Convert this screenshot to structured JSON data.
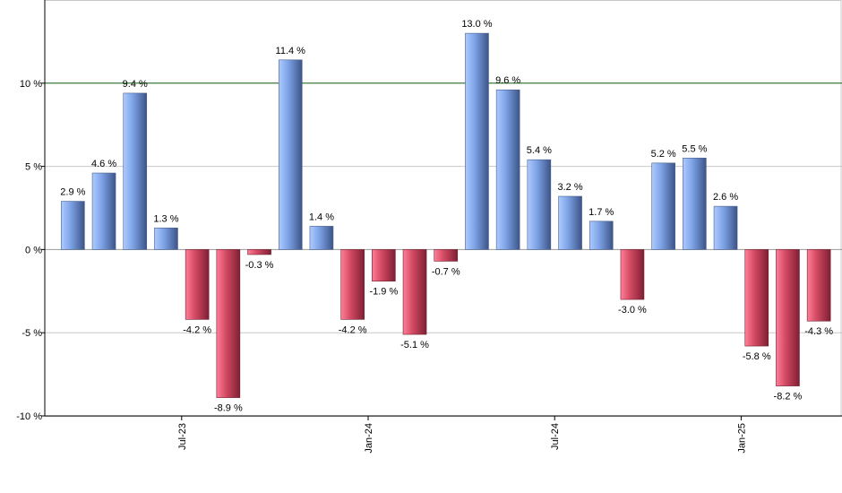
{
  "chart_data": {
    "type": "bar",
    "title": "",
    "xlabel": "",
    "ylabel": "",
    "ylim": [
      -10,
      15
    ],
    "y_ticks": [
      {
        "value": -10,
        "label": "-10 %"
      },
      {
        "value": -5,
        "label": "-5 %"
      },
      {
        "value": 0,
        "label": "0 %"
      },
      {
        "value": 5,
        "label": "5 %"
      },
      {
        "value": 10,
        "label": "10 %"
      }
    ],
    "x_ticks": [
      {
        "index": 3.5,
        "label": "Jul-23"
      },
      {
        "index": 9.5,
        "label": "Jan-24"
      },
      {
        "index": 15.5,
        "label": "Jul-24"
      },
      {
        "index": 21.5,
        "label": "Jan-25"
      }
    ],
    "reference_line": {
      "value": 10,
      "color": "#1a6b1a"
    },
    "grid": true,
    "legend": "none",
    "values": [
      2.9,
      4.6,
      9.4,
      1.3,
      -4.2,
      -8.9,
      -0.3,
      11.4,
      1.4,
      -4.2,
      -1.9,
      -5.1,
      -0.7,
      13.0,
      9.6,
      5.4,
      3.2,
      1.7,
      -3.0,
      5.2,
      5.5,
      2.6,
      -5.8,
      -8.2,
      -4.3
    ],
    "labels": [
      "2.9 %",
      "4.6 %",
      "9.4 %",
      "1.3 %",
      "-4.2 %",
      "-8.9 %",
      "-0.3 %",
      "11.4 %",
      "1.4 %",
      "-4.2 %",
      "-1.9 %",
      "-5.1 %",
      "-0.7 %",
      "13.0 %",
      "9.6 %",
      "5.4 %",
      "3.2 %",
      "1.7 %",
      "-3.0 %",
      "5.2 %",
      "5.5 %",
      "2.6 %",
      "-5.8 %",
      "-8.2 %",
      "-4.3 %"
    ],
    "colors": {
      "positive": "#7ea3e6",
      "negative": "#d44a64",
      "grid": "#c8c8c8",
      "axis": "#000000",
      "zero_line": "#9a9a9a"
    }
  }
}
